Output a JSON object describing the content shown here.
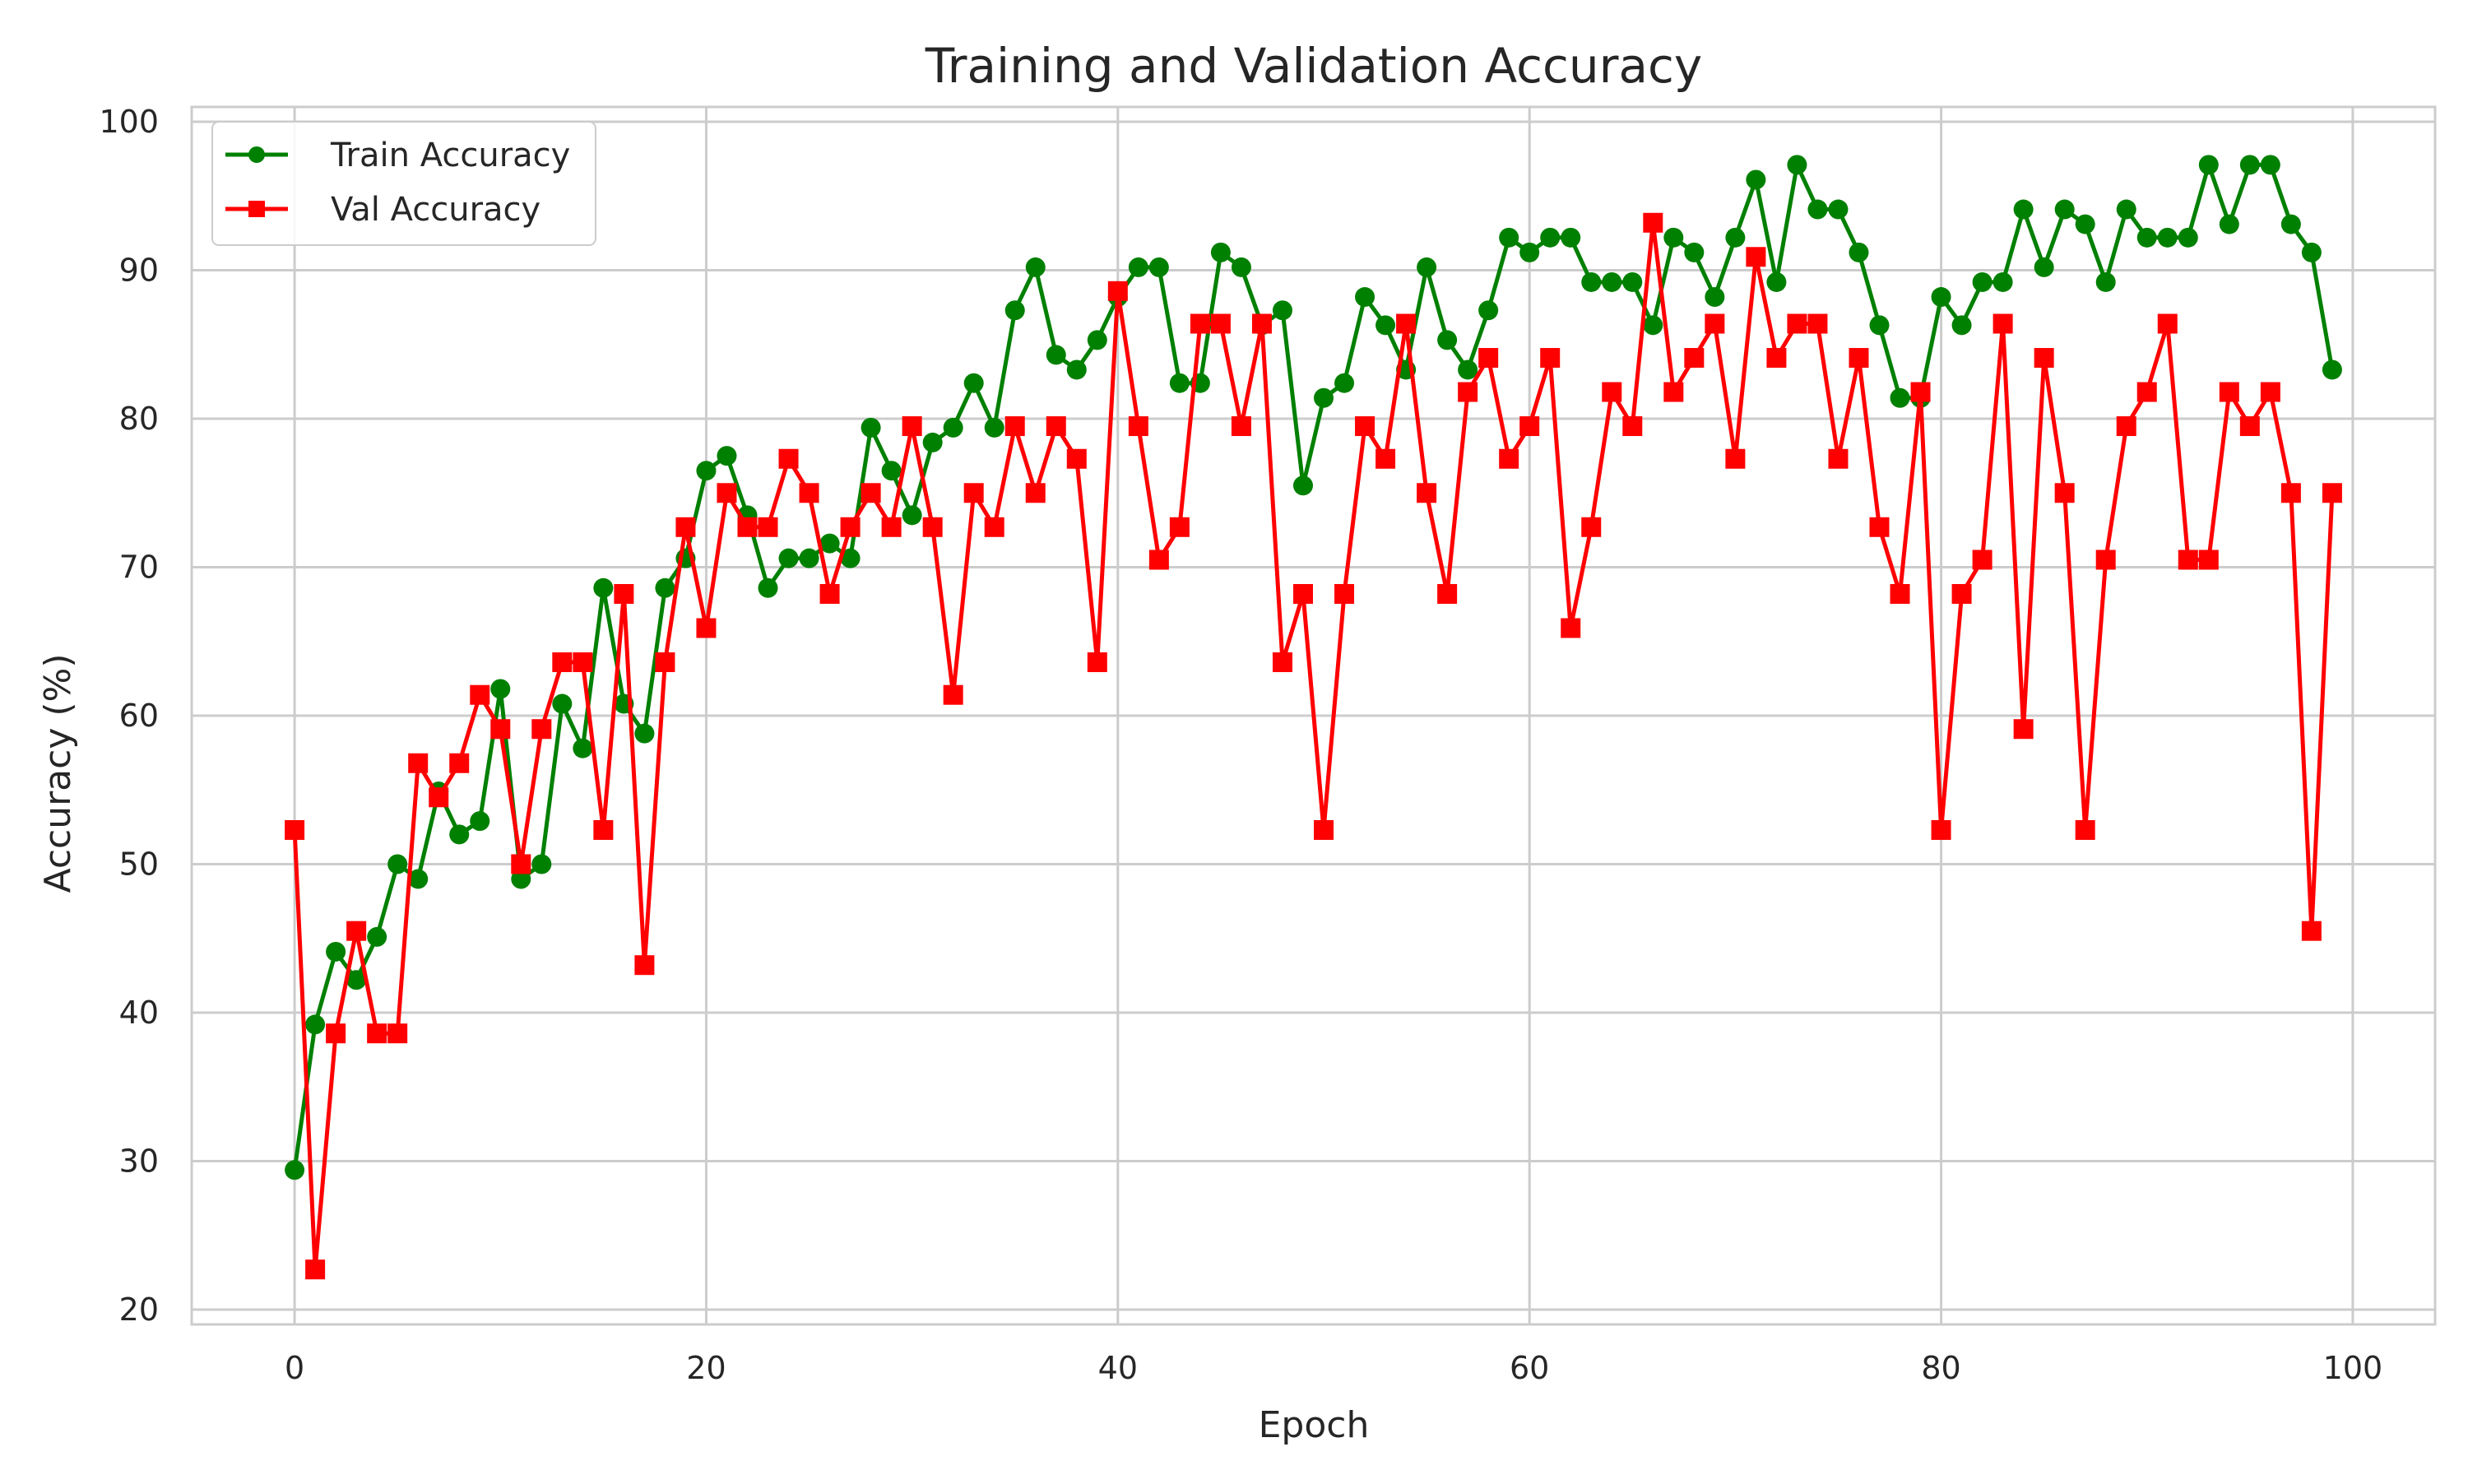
{
  "chart_data": {
    "type": "line",
    "title": "Training and Validation Accuracy",
    "xlabel": "Epoch",
    "ylabel": "Accuracy (%)",
    "xlim": [
      -5,
      104
    ],
    "ylim": [
      19,
      101
    ],
    "xticks": [
      0,
      20,
      40,
      60,
      80,
      100
    ],
    "yticks": [
      20,
      30,
      40,
      50,
      60,
      70,
      80,
      90,
      100
    ],
    "grid": true,
    "legend_position": "top-left",
    "x": [
      0,
      1,
      2,
      3,
      4,
      5,
      6,
      7,
      8,
      9,
      10,
      11,
      12,
      13,
      14,
      15,
      16,
      17,
      18,
      19,
      20,
      21,
      22,
      23,
      24,
      25,
      26,
      27,
      28,
      29,
      30,
      31,
      32,
      33,
      34,
      35,
      36,
      37,
      38,
      39,
      40,
      41,
      42,
      43,
      44,
      45,
      46,
      47,
      48,
      49,
      50,
      51,
      52,
      53,
      54,
      55,
      56,
      57,
      58,
      59,
      60,
      61,
      62,
      63,
      64,
      65,
      66,
      67,
      68,
      69,
      70,
      71,
      72,
      73,
      74,
      75,
      76,
      77,
      78,
      79,
      80,
      81,
      82,
      83,
      84,
      85,
      86,
      87,
      88,
      89,
      90,
      91,
      92,
      93,
      94,
      95,
      96,
      97,
      98,
      99
    ],
    "series": [
      {
        "name": "Train Accuracy",
        "color": "#008000",
        "marker": "circle",
        "values": [
          29.4,
          39.2,
          44.1,
          42.2,
          45.1,
          50.0,
          49.0,
          54.9,
          52.0,
          52.9,
          61.8,
          49.0,
          50.0,
          60.8,
          57.8,
          68.6,
          60.8,
          58.8,
          68.6,
          70.6,
          76.5,
          77.5,
          73.5,
          68.6,
          70.6,
          70.6,
          71.6,
          70.6,
          79.4,
          76.5,
          73.5,
          78.4,
          79.4,
          82.4,
          79.4,
          87.3,
          90.2,
          84.3,
          83.3,
          85.3,
          88.2,
          90.2,
          90.2,
          82.4,
          82.4,
          91.2,
          90.2,
          86.3,
          87.3,
          75.5,
          81.4,
          82.4,
          88.2,
          86.3,
          83.3,
          90.2,
          85.3,
          83.3,
          87.3,
          92.2,
          91.2,
          92.2,
          92.2,
          89.2,
          89.2,
          89.2,
          86.3,
          92.2,
          91.2,
          88.2,
          92.2,
          96.1,
          89.2,
          97.1,
          94.1,
          94.1,
          91.2,
          86.3,
          81.4,
          81.4,
          88.2,
          86.3,
          89.2,
          89.2,
          94.1,
          90.2,
          94.1,
          93.1,
          89.2,
          94.1,
          92.2,
          92.2,
          92.2,
          97.1,
          93.1,
          97.1,
          97.1,
          93.1,
          91.2,
          83.3
        ]
      },
      {
        "name": "Val Accuracy",
        "color": "#ff0000",
        "marker": "square",
        "values": [
          52.3,
          22.7,
          38.6,
          45.5,
          38.6,
          38.6,
          56.8,
          54.5,
          56.8,
          61.4,
          59.1,
          50.0,
          59.1,
          63.6,
          63.6,
          52.3,
          68.2,
          43.2,
          63.6,
          72.7,
          65.9,
          75.0,
          72.7,
          72.7,
          77.3,
          75.0,
          68.2,
          72.7,
          75.0,
          72.7,
          79.5,
          72.7,
          61.4,
          75.0,
          72.7,
          79.5,
          75.0,
          79.5,
          77.3,
          63.6,
          88.6,
          79.5,
          70.5,
          72.7,
          86.4,
          86.4,
          79.5,
          86.4,
          63.6,
          68.2,
          52.3,
          68.2,
          79.5,
          77.3,
          86.4,
          75.0,
          68.2,
          81.8,
          84.1,
          77.3,
          79.5,
          84.1,
          65.9,
          72.7,
          81.8,
          79.5,
          93.2,
          81.8,
          84.1,
          86.4,
          77.3,
          90.9,
          84.1,
          86.4,
          86.4,
          77.3,
          84.1,
          72.7,
          68.2,
          81.8,
          52.3,
          68.2,
          70.5,
          86.4,
          59.1,
          84.1,
          75.0,
          52.3,
          70.5,
          79.5,
          81.8,
          86.4,
          70.5,
          70.5,
          81.8,
          79.5,
          81.8,
          75.0,
          45.5,
          75.0
        ]
      }
    ]
  }
}
